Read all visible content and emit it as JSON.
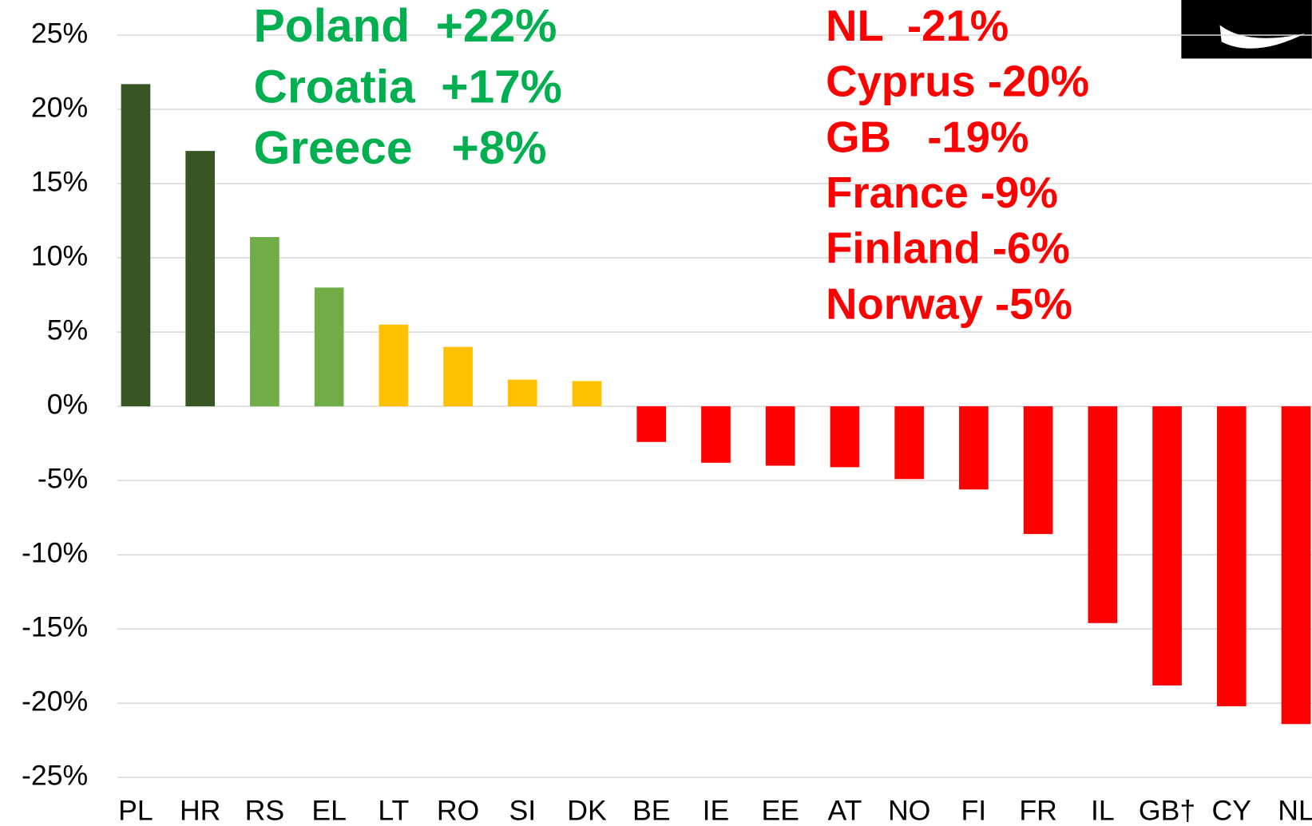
{
  "chart_data": {
    "type": "bar",
    "categories": [
      "PL",
      "HR",
      "RS",
      "EL",
      "LT",
      "RO",
      "SI",
      "DK",
      "BE",
      "IE",
      "EE",
      "AT",
      "NO",
      "FI",
      "FR",
      "IL",
      "GB†",
      "CY",
      "NL"
    ],
    "values": [
      21.7,
      17.2,
      11.4,
      8.0,
      5.5,
      4.0,
      1.8,
      1.7,
      -2.4,
      -3.8,
      -4.0,
      -4.1,
      -4.9,
      -5.6,
      -8.6,
      -14.6,
      -18.8,
      -20.2,
      -21.4
    ],
    "colors": [
      "#375623",
      "#375623",
      "#70ad47",
      "#70ad47",
      "#ffc000",
      "#ffc000",
      "#ffc000",
      "#ffc000",
      "#ff0000",
      "#ff0000",
      "#ff0000",
      "#ff0000",
      "#ff0000",
      "#ff0000",
      "#ff0000",
      "#ff0000",
      "#ff0000",
      "#ff0000",
      "#ff0000"
    ],
    "ylim": [
      -25,
      25
    ],
    "yticks": [
      {
        "value": 25,
        "label": "25%"
      },
      {
        "value": 20,
        "label": "20%"
      },
      {
        "value": 15,
        "label": "15%"
      },
      {
        "value": 10,
        "label": "10%"
      },
      {
        "value": 5,
        "label": "5%"
      },
      {
        "value": 0,
        "label": "0%"
      },
      {
        "value": -5,
        "label": "-5%"
      },
      {
        "value": -10,
        "label": "-10%"
      },
      {
        "value": -15,
        "label": "-15%"
      },
      {
        "value": -20,
        "label": "-20%"
      },
      {
        "value": -25,
        "label": "-25%"
      }
    ],
    "grid": true,
    "annotations": [
      {
        "text": "Poland  +22%",
        "color": "#00b050"
      },
      {
        "text": "Croatia  +17%",
        "color": "#00b050"
      },
      {
        "text": "Greece   +8%",
        "color": "#00b050"
      },
      {
        "text": "NL  -21%",
        "color": "#ff0000"
      },
      {
        "text": "Cyprus -20%",
        "color": "#ff0000"
      },
      {
        "text": "GB   -19%",
        "color": "#ff0000"
      },
      {
        "text": "France -9%",
        "color": "#ff0000"
      },
      {
        "text": "Finland -6%",
        "color": "#ff0000"
      },
      {
        "text": "Norway -5%",
        "color": "#ff0000"
      }
    ]
  }
}
